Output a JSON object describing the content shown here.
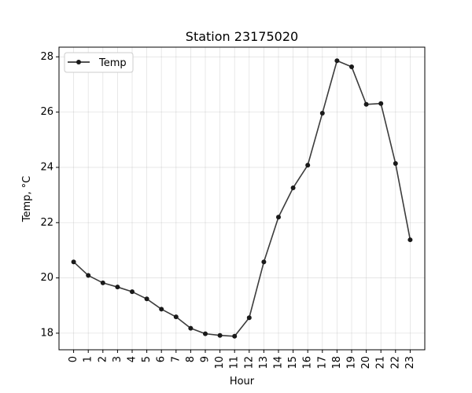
{
  "chart_data": {
    "type": "line",
    "title": "Station 23175020",
    "xlabel": "Hour",
    "ylabel": "Temp, °C",
    "x": [
      0,
      1,
      2,
      3,
      4,
      5,
      6,
      7,
      8,
      9,
      10,
      11,
      12,
      13,
      14,
      15,
      16,
      17,
      18,
      19,
      20,
      21,
      22,
      23
    ],
    "x_tick_labels": [
      "0",
      "1",
      "2",
      "3",
      "4",
      "5",
      "6",
      "7",
      "8",
      "9",
      "10",
      "11",
      "12",
      "13",
      "14",
      "15",
      "16",
      "17",
      "18",
      "19",
      "20",
      "21",
      "22",
      "23"
    ],
    "y_ticks": [
      18,
      20,
      22,
      24,
      26,
      28
    ],
    "y_tick_labels": [
      "18",
      "20",
      "22",
      "24",
      "26",
      "28"
    ],
    "xlim": [
      -1,
      24
    ],
    "ylim": [
      17.4,
      28.35
    ],
    "grid": true,
    "legend_position": "upper left",
    "series": [
      {
        "name": "Temp",
        "color": "#1a1a1a",
        "marker": "circle",
        "values": [
          20.58,
          20.09,
          19.82,
          19.67,
          19.5,
          19.24,
          18.87,
          18.59,
          18.18,
          17.98,
          17.92,
          17.89,
          18.56,
          20.58,
          22.2,
          23.26,
          24.08,
          25.96,
          27.86,
          27.64,
          26.28,
          26.31,
          24.14,
          21.38
        ]
      }
    ]
  }
}
